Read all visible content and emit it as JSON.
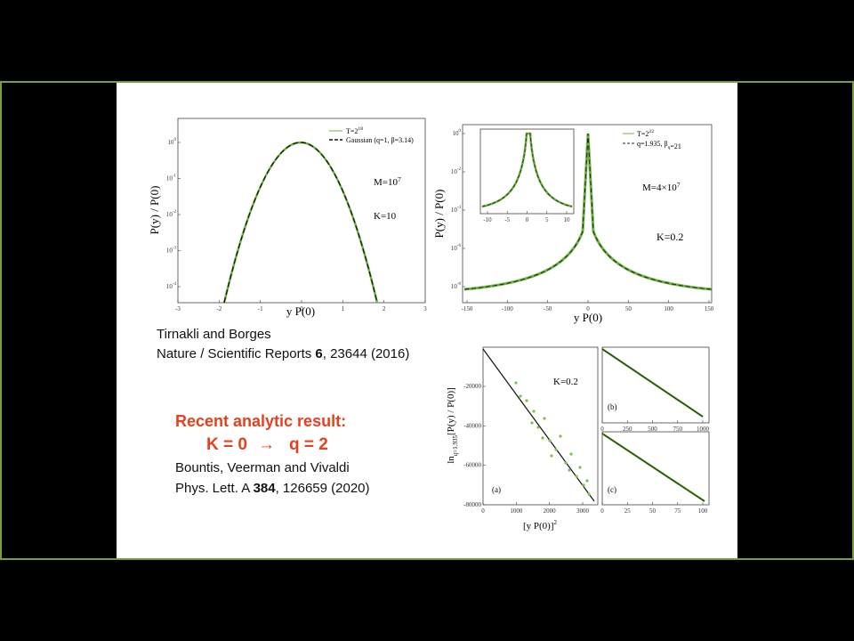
{
  "slide": {
    "citation1": {
      "authors": "Tirnakli and Borges",
      "journal": "Nature / Scientific Reports ",
      "volume": "6",
      "rest": ", 23644 (2016)"
    },
    "result": {
      "heading": "Recent analytic result:",
      "lhs": "K = 0",
      "arrow": "→",
      "rhs": "q = 2"
    },
    "citation2": {
      "authors": "Bountis, Veerman and Vivaldi",
      "journal": "Phys. Lett. A ",
      "volume": "384",
      "rest": ", 126659 (2020)"
    },
    "plots": [
      {
        "xlabel": "y P(0)",
        "ylabel": "P(y) / P(0)",
        "xticks": [
          "-3",
          "-2",
          "-1",
          "0",
          "1",
          "2",
          "3"
        ],
        "yticks": [
          {
            "base": "10",
            "sup": "0"
          },
          {
            "base": "10",
            "sup": "-1"
          },
          {
            "base": "10",
            "sup": "-2"
          },
          {
            "base": "10",
            "sup": "-3"
          },
          {
            "base": "10",
            "sup": "-4"
          }
        ],
        "legend": [
          {
            "base": "T=2",
            "sup": "18"
          },
          {
            "base": "Gaussian (q=1, β=3.14)",
            "sup": ""
          }
        ],
        "notes": [
          {
            "base": "M=10",
            "sup": "7"
          },
          {
            "base": "K=10",
            "sup": ""
          }
        ]
      },
      {
        "xlabel": "y P(0)",
        "ylabel": "P(y) / P(0)",
        "xticks": [
          "-150",
          "-100",
          "-50",
          "0",
          "50",
          "100",
          "150"
        ],
        "yticks": [
          {
            "base": "10",
            "sup": "0"
          },
          {
            "base": "10",
            "sup": "-2"
          },
          {
            "base": "10",
            "sup": "-4"
          },
          {
            "base": "10",
            "sup": "-6"
          },
          {
            "base": "10",
            "sup": "-8"
          }
        ],
        "legend": [
          {
            "base": "T=2",
            "sup": "22"
          },
          {
            "base": "q=1.935, β",
            "sup": "q",
            "after": "=21"
          }
        ],
        "notes": [
          {
            "base": "M=4×10",
            "sup": "7"
          },
          {
            "base": "K=0.2",
            "sup": ""
          }
        ],
        "inset_xticks": [
          "-10",
          "-5",
          "0",
          "5",
          "10"
        ]
      },
      {
        "xlabel": "[y P(0)]",
        "xlabel_sup": "2",
        "ylabel": "ln",
        "ylabel_sub": "q=1.935",
        "ylabel_rest": "[P(y) / P(0)]",
        "xticks": [
          "0",
          "1000",
          "2000",
          "3000"
        ],
        "yticks": [
          "-20000",
          "-40000",
          "-60000",
          "-80000"
        ],
        "notes": [
          {
            "base": "K=0.2",
            "sup": ""
          }
        ],
        "panel": "(a)",
        "sub_b": {
          "panel": "(b)",
          "xticks": [
            "0",
            "250",
            "500",
            "750",
            "1000"
          ]
        },
        "sub_c": {
          "panel": "(c)",
          "xticks": [
            "0",
            "25",
            "50",
            "75",
            "100"
          ]
        }
      }
    ]
  }
}
